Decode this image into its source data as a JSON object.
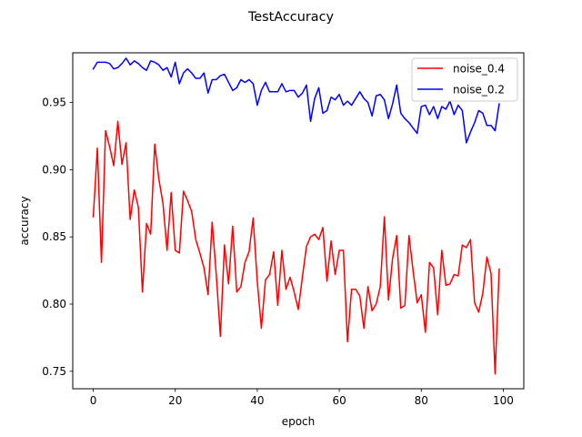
{
  "chart_data": {
    "type": "line",
    "title": "TestAccuracy",
    "xlabel": "epoch",
    "ylabel": "accuracy",
    "xlim": [
      -5,
      105
    ],
    "ylim": [
      0.737,
      0.987
    ],
    "xticks": [
      0,
      20,
      40,
      60,
      80,
      100
    ],
    "yticks": [
      0.75,
      0.8,
      0.85,
      0.9,
      0.95
    ],
    "ytick_labels": [
      "0.75",
      "0.80",
      "0.85",
      "0.90",
      "0.95"
    ],
    "grid": false,
    "legend_position": "top-right",
    "x": [
      0,
      1,
      2,
      3,
      4,
      5,
      6,
      7,
      8,
      9,
      10,
      11,
      12,
      13,
      14,
      15,
      16,
      17,
      18,
      19,
      20,
      21,
      22,
      23,
      24,
      25,
      26,
      27,
      28,
      29,
      30,
      31,
      32,
      33,
      34,
      35,
      36,
      37,
      38,
      39,
      40,
      41,
      42,
      43,
      44,
      45,
      46,
      47,
      48,
      49,
      50,
      51,
      52,
      53,
      54,
      55,
      56,
      57,
      58,
      59,
      60,
      61,
      62,
      63,
      64,
      65,
      66,
      67,
      68,
      69,
      70,
      71,
      72,
      73,
      74,
      75,
      76,
      77,
      78,
      79,
      80,
      81,
      82,
      83,
      84,
      85,
      86,
      87,
      88,
      89,
      90,
      91,
      92,
      93,
      94,
      95,
      96,
      97,
      98,
      99
    ],
    "series": [
      {
        "name": "noise_0.4",
        "color": "#ff0000",
        "values": [
          0.865,
          0.916,
          0.831,
          0.929,
          0.917,
          0.903,
          0.936,
          0.904,
          0.92,
          0.863,
          0.885,
          0.872,
          0.809,
          0.86,
          0.852,
          0.919,
          0.893,
          0.875,
          0.84,
          0.883,
          0.84,
          0.838,
          0.884,
          0.877,
          0.869,
          0.848,
          0.838,
          0.827,
          0.807,
          0.861,
          0.822,
          0.776,
          0.844,
          0.815,
          0.858,
          0.809,
          0.813,
          0.831,
          0.839,
          0.864,
          0.817,
          0.782,
          0.818,
          0.822,
          0.839,
          0.799,
          0.84,
          0.811,
          0.82,
          0.809,
          0.796,
          0.82,
          0.843,
          0.85,
          0.852,
          0.848,
          0.857,
          0.817,
          0.847,
          0.822,
          0.84,
          0.84,
          0.772,
          0.811,
          0.811,
          0.806,
          0.782,
          0.813,
          0.795,
          0.8,
          0.813,
          0.865,
          0.803,
          0.834,
          0.851,
          0.797,
          0.799,
          0.851,
          0.825,
          0.801,
          0.807,
          0.779,
          0.831,
          0.827,
          0.792,
          0.84,
          0.814,
          0.815,
          0.822,
          0.821,
          0.844,
          0.842,
          0.848,
          0.801,
          0.794,
          0.808,
          0.835,
          0.823,
          0.748,
          0.826
        ]
      },
      {
        "name": "noise_0.2",
        "color": "#0000ff",
        "values": [
          0.975,
          0.98,
          0.98,
          0.98,
          0.979,
          0.975,
          0.976,
          0.979,
          0.983,
          0.978,
          0.981,
          0.979,
          0.976,
          0.974,
          0.981,
          0.98,
          0.978,
          0.974,
          0.976,
          0.969,
          0.98,
          0.964,
          0.972,
          0.975,
          0.972,
          0.968,
          0.968,
          0.972,
          0.957,
          0.967,
          0.967,
          0.97,
          0.971,
          0.965,
          0.959,
          0.961,
          0.967,
          0.965,
          0.967,
          0.964,
          0.948,
          0.959,
          0.965,
          0.958,
          0.958,
          0.958,
          0.964,
          0.958,
          0.959,
          0.959,
          0.954,
          0.957,
          0.963,
          0.936,
          0.953,
          0.961,
          0.942,
          0.944,
          0.954,
          0.952,
          0.956,
          0.948,
          0.951,
          0.948,
          0.953,
          0.958,
          0.953,
          0.95,
          0.94,
          0.955,
          0.956,
          0.952,
          0.938,
          0.949,
          0.963,
          0.942,
          0.938,
          0.935,
          0.931,
          0.927,
          0.947,
          0.948,
          0.941,
          0.947,
          0.938,
          0.947,
          0.945,
          0.951,
          0.941,
          0.948,
          0.944,
          0.92,
          0.928,
          0.935,
          0.944,
          0.942,
          0.933,
          0.933,
          0.929,
          0.949
        ]
      }
    ]
  }
}
